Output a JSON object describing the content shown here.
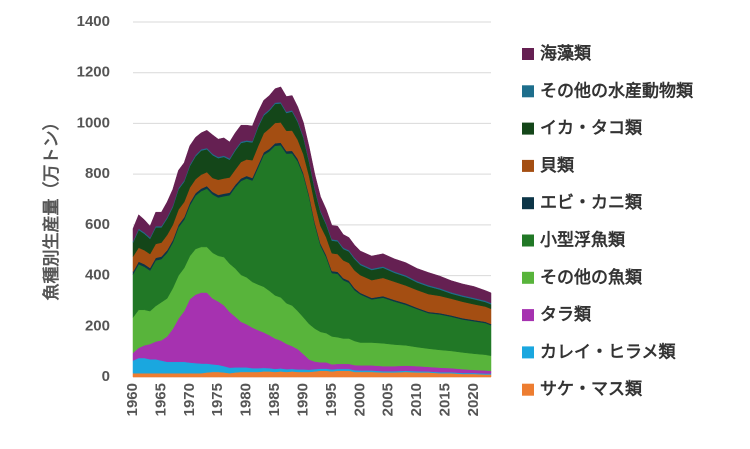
{
  "chart_data": {
    "type": "area",
    "stacked": true,
    "ylabel": "魚種別生産量（万トン）",
    "xlabel": "",
    "ylim": [
      0,
      1400
    ],
    "yticks": [
      0,
      200,
      400,
      600,
      800,
      1000,
      1200,
      1400
    ],
    "xticks": [
      1960,
      1965,
      1970,
      1975,
      1980,
      1985,
      1990,
      1995,
      2000,
      2005,
      2010,
      2015,
      2020
    ],
    "x_range": [
      1960,
      2023
    ],
    "legend_position": "right",
    "key_years": [
      1960,
      1961,
      1962,
      1963,
      1964,
      1965,
      1966,
      1967,
      1968,
      1969,
      1970,
      1971,
      1972,
      1973,
      1974,
      1975,
      1976,
      1977,
      1978,
      1979,
      1980,
      1981,
      1982,
      1983,
      1984,
      1985,
      1986,
      1987,
      1988,
      1989,
      1990,
      1991,
      1992,
      1993,
      1994,
      1995,
      1996,
      1997,
      1998,
      1999,
      2000,
      2002,
      2004,
      2006,
      2008,
      2010,
      2012,
      2014,
      2016,
      2018,
      2020,
      2022,
      2023
    ],
    "series": [
      {
        "name": "サケ・マス類",
        "color": "#ed7d31",
        "values": [
          15,
          15,
          15,
          15,
          15,
          15,
          15,
          15,
          15,
          15,
          15,
          15,
          15,
          18,
          20,
          20,
          18,
          15,
          18,
          20,
          20,
          20,
          20,
          22,
          22,
          20,
          22,
          20,
          22,
          20,
          20,
          20,
          22,
          25,
          25,
          22,
          25,
          25,
          25,
          20,
          20,
          20,
          18,
          18,
          20,
          18,
          18,
          15,
          15,
          12,
          12,
          10,
          10
        ]
      },
      {
        "name": "カレイ・ヒラメ類",
        "color": "#1aa7df",
        "values": [
          50,
          60,
          60,
          55,
          55,
          50,
          45,
          45,
          45,
          45,
          42,
          40,
          38,
          35,
          30,
          28,
          25,
          22,
          20,
          18,
          18,
          15,
          15,
          14,
          13,
          12,
          12,
          11,
          10,
          10,
          10,
          9,
          9,
          8,
          8,
          8,
          7,
          7,
          7,
          7,
          6,
          6,
          5,
          5,
          5,
          5,
          4,
          4,
          4,
          4,
          4,
          4,
          4
        ]
      },
      {
        "name": "タラ類",
        "color": "#a632b0",
        "values": [
          30,
          40,
          50,
          60,
          70,
          80,
          100,
          130,
          170,
          200,
          250,
          270,
          280,
          280,
          260,
          250,
          240,
          220,
          200,
          180,
          170,
          160,
          150,
          140,
          130,
          120,
          110,
          100,
          90,
          80,
          60,
          40,
          30,
          25,
          25,
          20,
          20,
          20,
          20,
          20,
          20,
          20,
          20,
          20,
          20,
          20,
          18,
          18,
          16,
          15,
          12,
          12,
          10
        ]
      },
      {
        "name": "その他の魚類",
        "color": "#58b43b",
        "values": [
          140,
          150,
          140,
          130,
          140,
          150,
          150,
          160,
          170,
          170,
          170,
          180,
          180,
          180,
          180,
          180,
          190,
          190,
          190,
          185,
          185,
          180,
          180,
          180,
          175,
          170,
          170,
          160,
          160,
          150,
          145,
          140,
          130,
          120,
          115,
          110,
          105,
          100,
          100,
          95,
          90,
          90,
          90,
          85,
          80,
          75,
          72,
          70,
          68,
          66,
          64,
          62,
          60
        ]
      },
      {
        "name": "小型浮魚類",
        "color": "#217826",
        "values": [
          170,
          180,
          170,
          160,
          180,
          170,
          180,
          180,
          190,
          190,
          200,
          210,
          220,
          230,
          230,
          230,
          240,
          270,
          320,
          370,
          390,
          400,
          460,
          520,
          550,
          590,
          600,
          590,
          600,
          590,
          560,
          500,
          410,
          340,
          300,
          250,
          250,
          230,
          220,
          200,
          190,
          170,
          180,
          170,
          160,
          150,
          140,
          140,
          135,
          130,
          128,
          125,
          120
        ]
      },
      {
        "name": "エビ・カニ類",
        "color": "#0c3547",
        "values": [
          10,
          10,
          10,
          10,
          10,
          10,
          10,
          10,
          10,
          10,
          10,
          10,
          10,
          10,
          10,
          10,
          10,
          10,
          10,
          10,
          10,
          10,
          10,
          10,
          10,
          10,
          10,
          10,
          10,
          10,
          8,
          8,
          8,
          8,
          8,
          8,
          8,
          8,
          8,
          8,
          6,
          6,
          6,
          6,
          6,
          5,
          5,
          5,
          5,
          5,
          5,
          5,
          5
        ]
      },
      {
        "name": "貝類",
        "color": "#a44e12",
        "values": [
          60,
          55,
          55,
          55,
          55,
          55,
          60,
          60,
          60,
          60,
          60,
          55,
          55,
          55,
          55,
          60,
          60,
          60,
          60,
          65,
          65,
          70,
          75,
          75,
          80,
          80,
          80,
          80,
          80,
          75,
          75,
          75,
          75,
          70,
          70,
          70,
          70,
          70,
          70,
          70,
          70,
          70,
          72,
          72,
          70,
          70,
          70,
          68,
          66,
          65,
          62,
          60,
          60
        ]
      },
      {
        "name": "イカ・タコ類",
        "color": "#144619",
        "values": [
          55,
          70,
          65,
          60,
          65,
          60,
          65,
          70,
          80,
          80,
          85,
          90,
          95,
          90,
          90,
          85,
          85,
          70,
          75,
          75,
          70,
          70,
          75,
          70,
          70,
          75,
          75,
          70,
          75,
          70,
          65,
          55,
          55,
          55,
          50,
          50,
          50,
          45,
          45,
          45,
          40,
          40,
          40,
          35,
          35,
          30,
          30,
          25,
          20,
          20,
          20,
          18,
          18
        ]
      },
      {
        "name": "その他の水産動物類",
        "color": "#1d6e8c",
        "values": [
          5,
          5,
          5,
          5,
          5,
          5,
          5,
          5,
          5,
          5,
          5,
          5,
          5,
          5,
          5,
          5,
          5,
          5,
          5,
          5,
          5,
          5,
          5,
          5,
          5,
          5,
          5,
          5,
          5,
          5,
          5,
          5,
          5,
          5,
          5,
          5,
          5,
          5,
          5,
          5,
          5,
          5,
          5,
          5,
          5,
          5,
          5,
          5,
          5,
          5,
          5,
          5,
          5
        ]
      },
      {
        "name": "海藻類",
        "color": "#652052",
        "values": [
          50,
          55,
          50,
          45,
          55,
          55,
          60,
          65,
          70,
          70,
          75,
          70,
          65,
          70,
          75,
          70,
          70,
          65,
          65,
          65,
          60,
          60,
          55,
          55,
          55,
          55,
          60,
          60,
          58,
          55,
          55,
          55,
          55,
          55,
          55,
          55,
          55,
          52,
          50,
          50,
          50,
          50,
          50,
          50,
          50,
          50,
          50,
          48,
          46,
          45,
          45,
          40,
          40
        ]
      }
    ]
  }
}
